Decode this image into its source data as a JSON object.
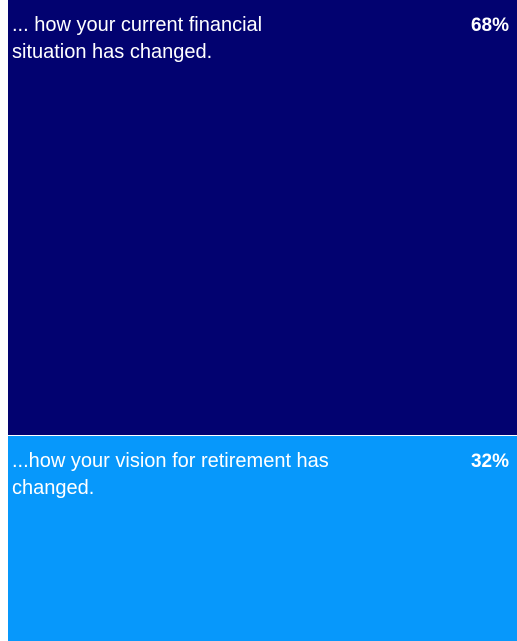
{
  "chart_data": {
    "type": "bar",
    "categories": [
      "... how your current financial situation has changed.",
      "...how your vision for retirement has changed."
    ],
    "values": [
      68,
      32
    ],
    "value_labels": [
      "68%",
      "32%"
    ],
    "colors": [
      "#020270",
      "#0798FB"
    ]
  }
}
